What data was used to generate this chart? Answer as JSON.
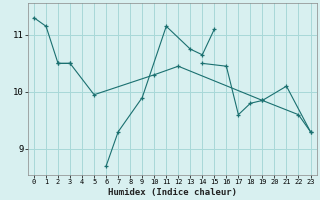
{
  "title": "",
  "xlabel": "Humidex (Indice chaleur)",
  "bg_color": "#d8f0f0",
  "line_color": "#1a7070",
  "grid_color": "#a8d8d8",
  "spine_color": "#888888",
  "xlim": [
    -0.5,
    23.5
  ],
  "ylim": [
    8.55,
    11.55
  ],
  "yticks": [
    9,
    10,
    11
  ],
  "xticks": [
    0,
    1,
    2,
    3,
    4,
    5,
    6,
    7,
    8,
    9,
    10,
    11,
    12,
    13,
    14,
    15,
    16,
    17,
    18,
    19,
    20,
    21,
    22,
    23
  ],
  "series": [
    {
      "x": [
        0,
        1,
        2,
        3
      ],
      "y": [
        11.3,
        11.15,
        10.5,
        10.5
      ]
    },
    {
      "x": [
        2,
        3,
        5,
        10,
        12,
        19,
        21,
        23
      ],
      "y": [
        10.5,
        10.5,
        9.95,
        10.3,
        10.45,
        9.85,
        10.1,
        9.3
      ]
    },
    {
      "x": [
        6,
        7,
        9,
        11,
        13,
        14,
        15
      ],
      "y": [
        8.7,
        9.3,
        9.9,
        11.15,
        10.75,
        10.65,
        11.1
      ]
    },
    {
      "x": [
        14,
        16,
        17,
        18,
        19,
        22,
        23
      ],
      "y": [
        10.5,
        10.45,
        9.6,
        9.8,
        9.85,
        9.6,
        9.3
      ]
    }
  ]
}
